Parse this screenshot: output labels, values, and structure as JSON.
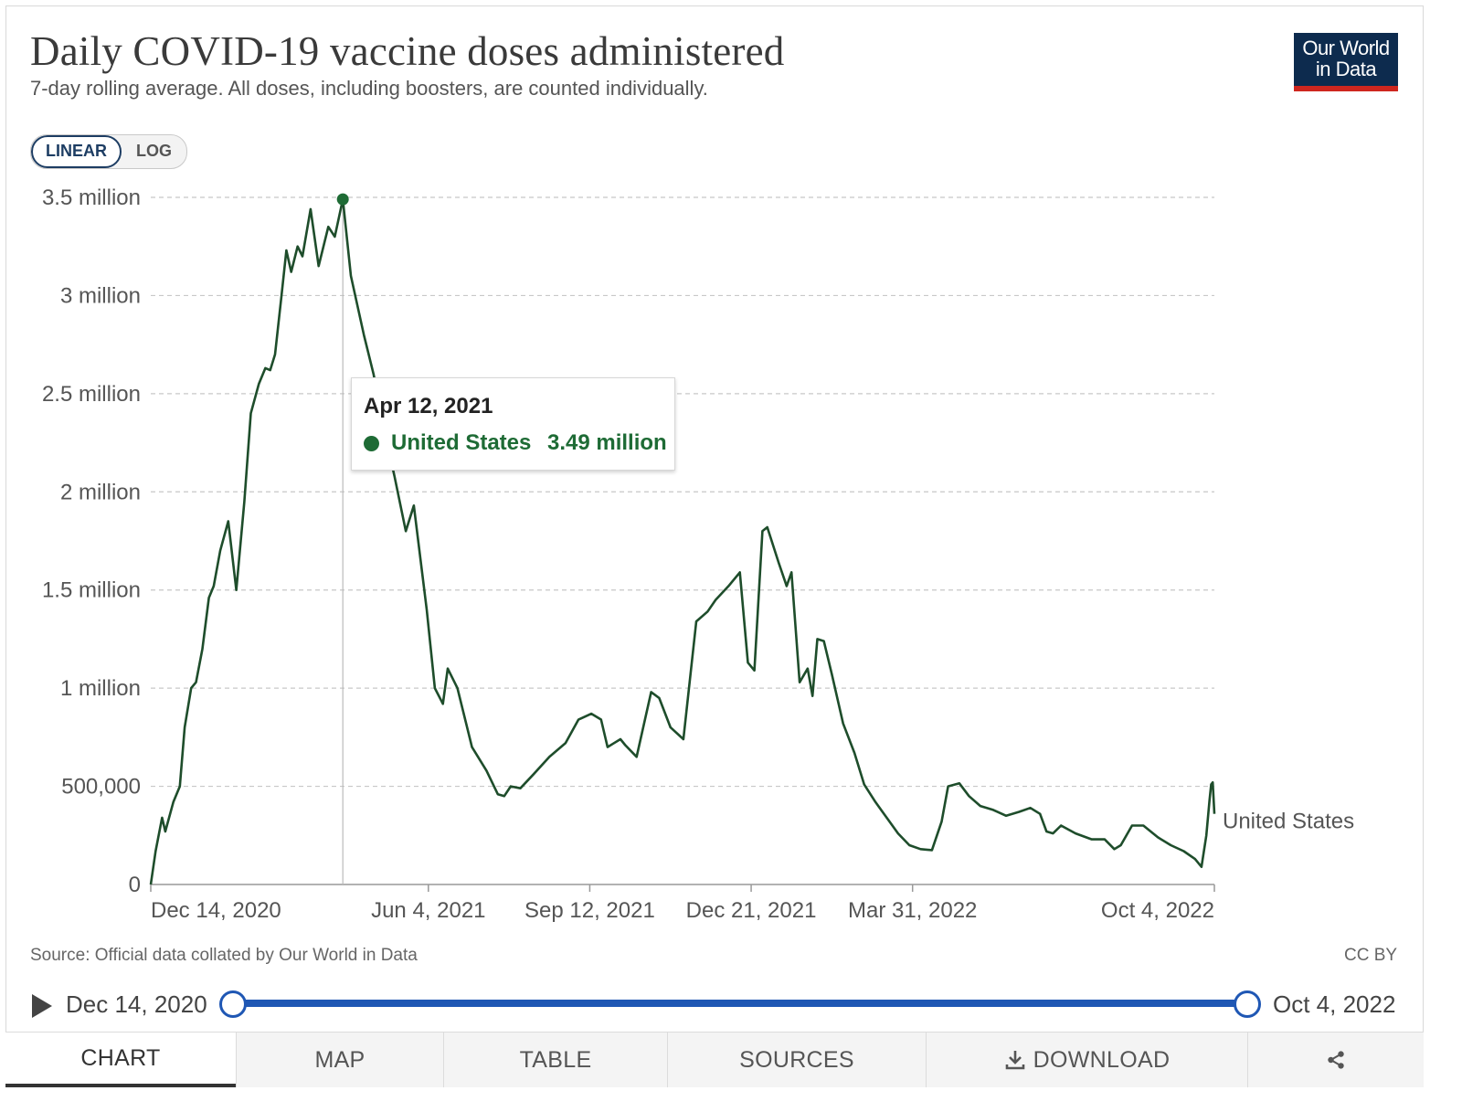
{
  "header": {
    "title": "Daily COVID-19 vaccine doses administered",
    "subtitle": "7-day rolling average. All doses, including boosters, are counted individually.",
    "logo_line1": "Our World",
    "logo_line2": "in Data"
  },
  "scale_toggle": {
    "linear_label": "LINEAR",
    "log_label": "LOG",
    "active": "LINEAR"
  },
  "tooltip": {
    "date": "Apr 12, 2021",
    "series": "United States",
    "value": "3.49 million"
  },
  "footer": {
    "source": "Source: Official data collated by Our World in Data",
    "license": "CC BY"
  },
  "timeline": {
    "start_label": "Dec 14, 2020",
    "end_label": "Oct 4, 2022"
  },
  "tabs": [
    {
      "label": "CHART",
      "active": true
    },
    {
      "label": "MAP"
    },
    {
      "label": "TABLE"
    },
    {
      "label": "SOURCES"
    },
    {
      "label": "DOWNLOAD"
    },
    {
      "label": "",
      "icon": "share-icon"
    }
  ],
  "colors": {
    "series": "#1e4d2b",
    "accent": "#1f57b4",
    "brand": "#0d2b4e",
    "brand_red": "#ce261e"
  },
  "chart_data": {
    "type": "line",
    "title": "Daily COVID-19 vaccine doses administered",
    "xlabel": "",
    "ylabel": "",
    "ylim": [
      0,
      3500000
    ],
    "xlim": [
      "2020-12-14",
      "2022-10-04"
    ],
    "yticks": [
      {
        "value": 0,
        "label": "0"
      },
      {
        "value": 500000,
        "label": "500,000"
      },
      {
        "value": 1000000,
        "label": "1 million"
      },
      {
        "value": 1500000,
        "label": "1.5 million"
      },
      {
        "value": 2000000,
        "label": "2 million"
      },
      {
        "value": 2500000,
        "label": "2.5 million"
      },
      {
        "value": 3000000,
        "label": "3 million"
      },
      {
        "value": 3500000,
        "label": "3.5 million"
      }
    ],
    "xticks": [
      {
        "date": "2020-12-14",
        "label": "Dec 14, 2020"
      },
      {
        "date": "2021-06-04",
        "label": "Jun 4, 2021"
      },
      {
        "date": "2021-09-12",
        "label": "Sep 12, 2021"
      },
      {
        "date": "2021-12-21",
        "label": "Dec 21, 2021"
      },
      {
        "date": "2022-03-31",
        "label": "Mar 31, 2022"
      },
      {
        "date": "2022-10-04",
        "label": "Oct 4, 2022"
      }
    ],
    "grid": true,
    "highlight": {
      "date": "2021-04-12",
      "value": 3490000
    },
    "series": [
      {
        "name": "United States",
        "points": [
          [
            "2020-12-14",
            0
          ],
          [
            "2020-12-17",
            170000
          ],
          [
            "2020-12-21",
            340000
          ],
          [
            "2020-12-23",
            270000
          ],
          [
            "2020-12-28",
            420000
          ],
          [
            "2021-01-01",
            500000
          ],
          [
            "2021-01-04",
            800000
          ],
          [
            "2021-01-08",
            1000000
          ],
          [
            "2021-01-11",
            1030000
          ],
          [
            "2021-01-15",
            1200000
          ],
          [
            "2021-01-19",
            1460000
          ],
          [
            "2021-01-22",
            1520000
          ],
          [
            "2021-01-26",
            1700000
          ],
          [
            "2021-01-31",
            1850000
          ],
          [
            "2021-02-05",
            1500000
          ],
          [
            "2021-02-10",
            1950000
          ],
          [
            "2021-02-14",
            2400000
          ],
          [
            "2021-02-19",
            2550000
          ],
          [
            "2021-02-23",
            2630000
          ],
          [
            "2021-02-26",
            2620000
          ],
          [
            "2021-03-01",
            2700000
          ],
          [
            "2021-03-05",
            3000000
          ],
          [
            "2021-03-08",
            3230000
          ],
          [
            "2021-03-11",
            3120000
          ],
          [
            "2021-03-15",
            3250000
          ],
          [
            "2021-03-18",
            3200000
          ],
          [
            "2021-03-23",
            3440000
          ],
          [
            "2021-03-28",
            3150000
          ],
          [
            "2021-04-03",
            3350000
          ],
          [
            "2021-04-07",
            3300000
          ],
          [
            "2021-04-12",
            3490000
          ],
          [
            "2021-04-17",
            3100000
          ],
          [
            "2021-04-25",
            2800000
          ],
          [
            "2021-05-01",
            2600000
          ],
          [
            "2021-05-08",
            2300000
          ],
          [
            "2021-05-14",
            2080000
          ],
          [
            "2021-05-21",
            1800000
          ],
          [
            "2021-05-26",
            1930000
          ],
          [
            "2021-06-03",
            1400000
          ],
          [
            "2021-06-08",
            1000000
          ],
          [
            "2021-06-13",
            920000
          ],
          [
            "2021-06-16",
            1100000
          ],
          [
            "2021-06-22",
            1000000
          ],
          [
            "2021-07-01",
            700000
          ],
          [
            "2021-07-10",
            580000
          ],
          [
            "2021-07-17",
            460000
          ],
          [
            "2021-07-21",
            450000
          ],
          [
            "2021-07-25",
            500000
          ],
          [
            "2021-07-31",
            490000
          ],
          [
            "2021-08-08",
            560000
          ],
          [
            "2021-08-18",
            650000
          ],
          [
            "2021-08-28",
            720000
          ],
          [
            "2021-09-05",
            840000
          ],
          [
            "2021-09-13",
            870000
          ],
          [
            "2021-09-19",
            840000
          ],
          [
            "2021-09-23",
            700000
          ],
          [
            "2021-09-27",
            720000
          ],
          [
            "2021-10-01",
            740000
          ],
          [
            "2021-10-04",
            710000
          ],
          [
            "2021-10-11",
            650000
          ],
          [
            "2021-10-20",
            980000
          ],
          [
            "2021-10-25",
            950000
          ],
          [
            "2021-11-01",
            800000
          ],
          [
            "2021-11-09",
            740000
          ],
          [
            "2021-11-17",
            1340000
          ],
          [
            "2021-11-24",
            1390000
          ],
          [
            "2021-11-29",
            1450000
          ],
          [
            "2021-12-07",
            1520000
          ],
          [
            "2021-12-14",
            1590000
          ],
          [
            "2021-12-19",
            1130000
          ],
          [
            "2021-12-23",
            1090000
          ],
          [
            "2021-12-28",
            1800000
          ],
          [
            "2021-12-31",
            1820000
          ],
          [
            "2022-01-07",
            1640000
          ],
          [
            "2022-01-12",
            1520000
          ],
          [
            "2022-01-15",
            1590000
          ],
          [
            "2022-01-20",
            1030000
          ],
          [
            "2022-01-25",
            1100000
          ],
          [
            "2022-01-28",
            960000
          ],
          [
            "2022-01-31",
            1250000
          ],
          [
            "2022-02-04",
            1240000
          ],
          [
            "2022-02-09",
            1070000
          ],
          [
            "2022-02-16",
            820000
          ],
          [
            "2022-02-23",
            670000
          ],
          [
            "2022-03-01",
            510000
          ],
          [
            "2022-03-08",
            420000
          ],
          [
            "2022-03-15",
            340000
          ],
          [
            "2022-03-22",
            260000
          ],
          [
            "2022-03-29",
            200000
          ],
          [
            "2022-04-05",
            180000
          ],
          [
            "2022-04-12",
            175000
          ],
          [
            "2022-04-18",
            320000
          ],
          [
            "2022-04-22",
            500000
          ],
          [
            "2022-04-29",
            515000
          ],
          [
            "2022-05-05",
            450000
          ],
          [
            "2022-05-12",
            400000
          ],
          [
            "2022-05-20",
            380000
          ],
          [
            "2022-05-28",
            350000
          ],
          [
            "2022-06-05",
            370000
          ],
          [
            "2022-06-12",
            390000
          ],
          [
            "2022-06-18",
            360000
          ],
          [
            "2022-06-22",
            270000
          ],
          [
            "2022-06-26",
            260000
          ],
          [
            "2022-07-01",
            300000
          ],
          [
            "2022-07-10",
            260000
          ],
          [
            "2022-07-20",
            230000
          ],
          [
            "2022-07-28",
            230000
          ],
          [
            "2022-08-03",
            180000
          ],
          [
            "2022-08-07",
            200000
          ],
          [
            "2022-08-14",
            300000
          ],
          [
            "2022-08-21",
            300000
          ],
          [
            "2022-08-30",
            240000
          ],
          [
            "2022-09-07",
            200000
          ],
          [
            "2022-09-15",
            170000
          ],
          [
            "2022-09-22",
            130000
          ],
          [
            "2022-09-26",
            90000
          ],
          [
            "2022-09-29",
            250000
          ],
          [
            "2022-10-01",
            430000
          ],
          [
            "2022-10-02",
            510000
          ],
          [
            "2022-10-03",
            520000
          ],
          [
            "2022-10-04",
            360000
          ]
        ]
      }
    ]
  }
}
